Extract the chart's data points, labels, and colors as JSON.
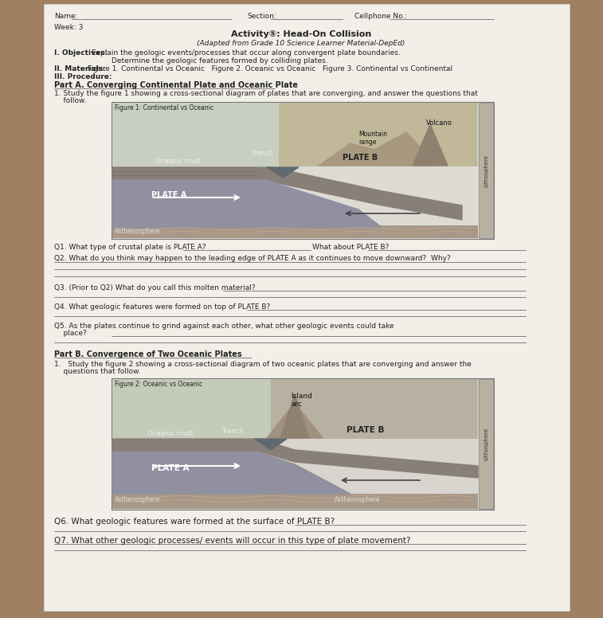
{
  "bg_color": "#a08060",
  "paper_color": "#f2efe8",
  "fig_color": "#c8c4b8",
  "title_activity": "Activity⑤: Head-On Collision",
  "title_subtitle": "(Adapted from Grade 10 Science Learner Material-DepEd)",
  "header_name": "Name:",
  "header_section": "Section:",
  "header_cellphone": "Cellphone No.:",
  "header_week": "Week: 3",
  "obj_label": "I. Objectives:",
  "obj1": "Explain the geologic events/processes that occur along convergent plate boundaries.",
  "obj2": "Determine the geologic features formed by colliding plates.",
  "mat_label": "II. Materials:",
  "mat_text": "Figure 1. Continental vs Oceanic   Figure 2. Oceanic vs Oceanic   Figure 3. Continental vs Continental",
  "proc_label": "III. Procedure:",
  "partA_title": "Part A. Converging Continental Plate and Oceanic Plate",
  "partA_p1": "1. Study the figure 1 showing a cross-sectional diagram of plates that are converging, and answer the questions that",
  "partA_p2": "    follow.",
  "fig1_title": "Figure 1: Continental vs Oceanic",
  "fig1_volcano": "Volcano",
  "fig1_mountain": "Mountain\nrange",
  "fig1_trench": "Trench",
  "fig1_oceanic": "Oceanic crust",
  "fig1_plateA": "PLATE A",
  "fig1_plateB": "PLATE B",
  "fig1_litho": "Lithosphere",
  "fig1_asth": "Asthenosphere",
  "Q1": "Q1. What type of crustal plate is PLATE A?",
  "Q1b": "What about PLATE B?",
  "Q2": "Q2. What do you think may happen to the leading edge of PLATE A as it continues to move downward?  Why?",
  "Q3": "Q3. (Prior to Q2) What do you call this molten material?",
  "Q4": "Q4. What geologic features were formed on top of PLATE B?",
  "Q5a": "Q5. As the plates continue to grind against each other, what other geologic events could take",
  "Q5b": "    place?",
  "partB_title": "Part B. Convergence of Two Oceanic Plates",
  "partB_p1": "1.   Study the figure 2 showing a cross-sectional diagram of two oceanic plates that are converging and answer the",
  "partB_p2": "    questions that follow.",
  "fig2_title": "Figure 2: Oceanic vs Oceanic",
  "fig2_island": "Island\narc",
  "fig2_trench": "Trench",
  "fig2_oceanic": "Oceanic crust",
  "fig2_plateA": "PLATE A",
  "fig2_plateB": "PLATE B",
  "fig2_litho": "Lithosphere",
  "fig2_asth1": "Asthenosphere",
  "fig2_asth2": "Asthenosphere",
  "Q6": "Q6. What geologic features ware formed at the surface of PLATE B?",
  "Q7": "Q7. What other geologic processes/ events will occur in this type of plate movement?"
}
